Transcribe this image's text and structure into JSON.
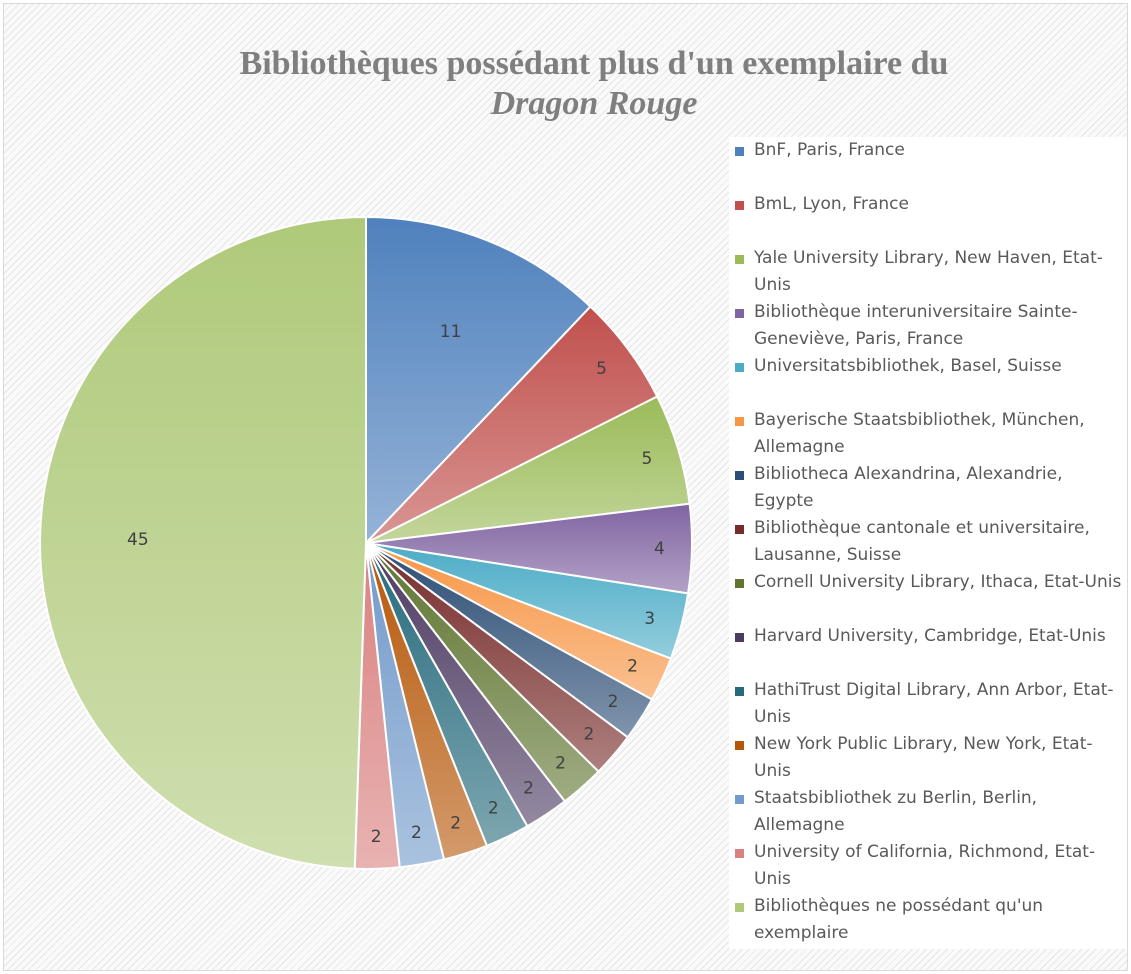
{
  "chart_data": {
    "type": "pie",
    "title_line1": "Bibliothèques possédant plus d'un exemplaire du",
    "title_line2": "Dragon Rouge",
    "legend_position": "right",
    "slices": [
      {
        "label": "BnF, Paris, France",
        "value": 11,
        "color": "#4f81bd"
      },
      {
        "label": "BmL, Lyon, France",
        "value": 5,
        "color": "#c0504d"
      },
      {
        "label": "Yale University Library, New Haven, Etat-Unis",
        "value": 5,
        "color": "#9bbb59"
      },
      {
        "label": "Bibliothèque interuniversitaire Sainte-Geneviève, Paris, France",
        "value": 4,
        "color": "#8064a2"
      },
      {
        "label": "Universitatsbibliothek, Basel, Suisse",
        "value": 3,
        "color": "#4bacc6"
      },
      {
        "label": "Bayerische Staatsbibliothek, München, Allemagne",
        "value": 2,
        "color": "#f79646"
      },
      {
        "label": "Bibliotheca Alexandrina, Alexandrie, Egypte",
        "value": 2,
        "color": "#2c4d75"
      },
      {
        "label": "Bibliothèque cantonale et universitaire, Lausanne, Suisse",
        "value": 2,
        "color": "#772c2a"
      },
      {
        "label": "Cornell University Library, Ithaca, Etat-Unis",
        "value": 2,
        "color": "#5f7530"
      },
      {
        "label": "Harvard University, Cambridge, Etat-Unis",
        "value": 2,
        "color": "#4d3b62"
      },
      {
        "label": "HathiTrust Digital Library, Ann Arbor, Etat-Unis",
        "value": 2,
        "color": "#276a7c"
      },
      {
        "label": "New York Public Library, New York, Etat-Unis",
        "value": 2,
        "color": "#b65708"
      },
      {
        "label": "Staatsbibliothek zu Berlin, Berlin, Allemagne",
        "value": 2,
        "color": "#729aca"
      },
      {
        "label": "University of California, Richmond, Etat-Unis",
        "value": 2,
        "color": "#d9817f"
      },
      {
        "label": "Bibliothèques ne possédant qu'un exemplaire",
        "value": 45,
        "color": "#afc97a"
      }
    ]
  }
}
